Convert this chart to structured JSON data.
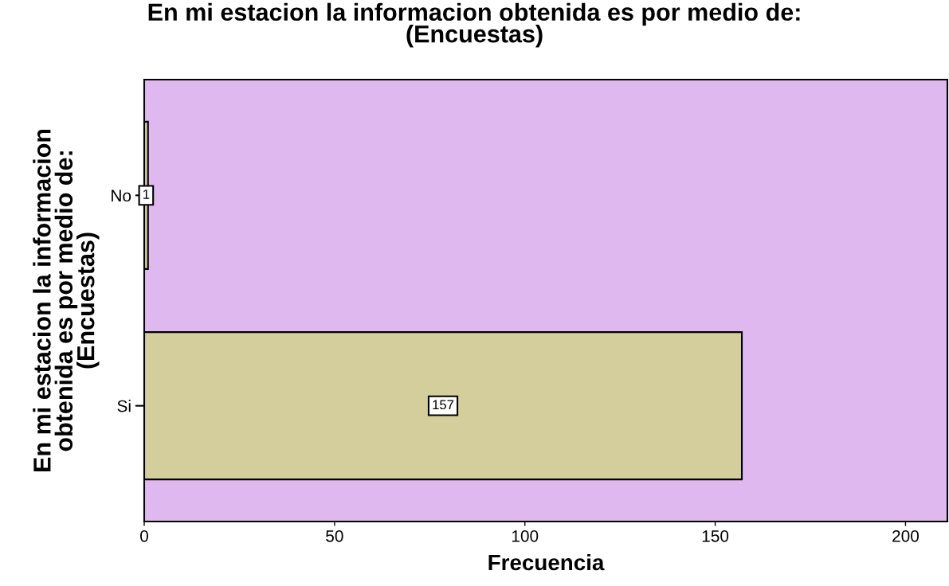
{
  "chart_data": {
    "type": "bar",
    "orientation": "horizontal",
    "title": "En mi estacion la informacion obtenida es por medio de:\n(Encuestas)",
    "xlabel": "Frecuencia",
    "ylabel": "En mi estacion la informacion\nobtenida es por medio de:\n(Encuestas)",
    "categories": [
      "No",
      "Si"
    ],
    "values": [
      1,
      157
    ],
    "color": "#d3ce9b",
    "xlim": [
      0,
      211
    ],
    "xticks": [
      0,
      50,
      100,
      150,
      200
    ],
    "data_labels": true,
    "grid": false,
    "legend": false
  }
}
